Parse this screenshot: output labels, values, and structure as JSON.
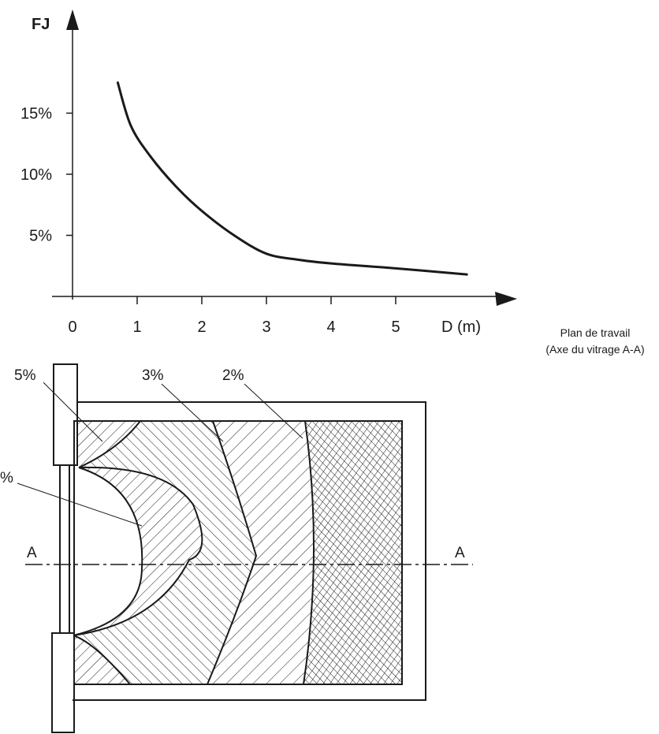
{
  "chart_data": {
    "type": "line",
    "ylabel": "FJ",
    "xlabel": "D (m)",
    "x_ticks": [
      "0",
      "1",
      "2",
      "3",
      "4",
      "5"
    ],
    "y_ticks": [
      "5%",
      "10%",
      "15%"
    ],
    "xlim": [
      0,
      6.2
    ],
    "ylim": [
      0,
      20
    ],
    "grid": false,
    "series": [
      {
        "x": [
          0.7,
          0.9,
          1.2,
          1.6,
          2.0,
          2.5,
          3.0,
          3.5,
          4.0,
          5.0,
          6.1
        ],
        "y": [
          17.5,
          14.0,
          11.5,
          9.0,
          7.0,
          5.0,
          3.5,
          3.0,
          2.7,
          2.3,
          1.8
        ]
      }
    ]
  },
  "plan": {
    "caption_line1": "Plan de travail",
    "caption_line2": "(Axe du vitrage A-A)",
    "zone_labels": [
      "5%",
      "3%",
      "2%",
      "%"
    ],
    "axis_label_left": "A",
    "axis_label_right": "A"
  }
}
